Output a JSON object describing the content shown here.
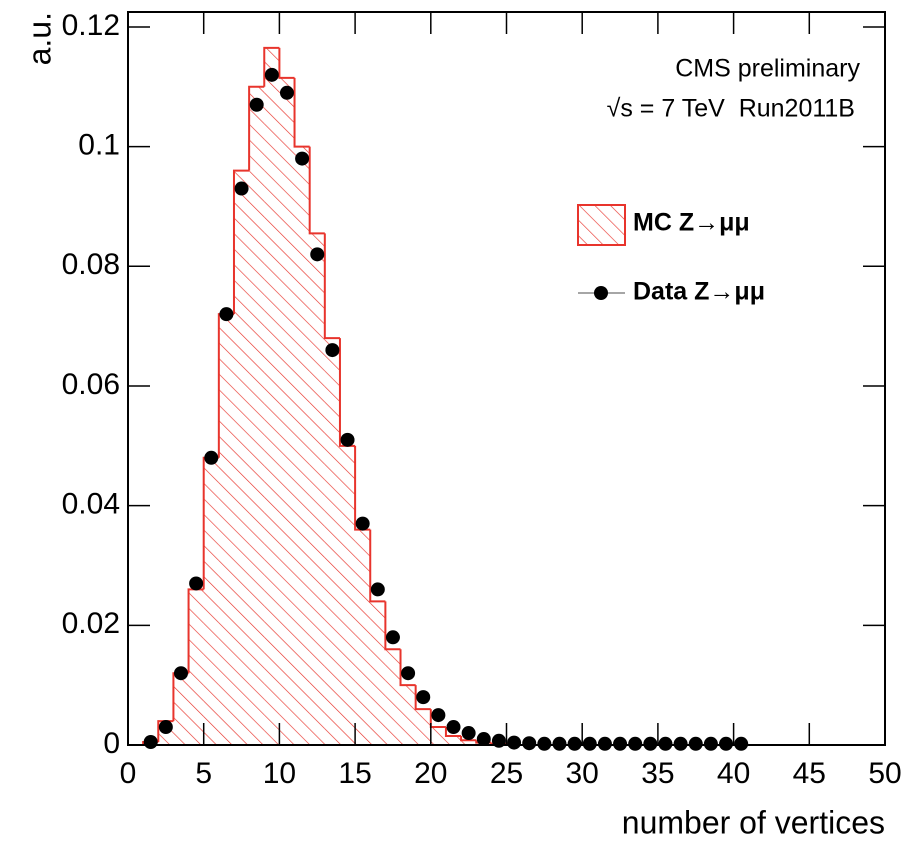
{
  "chart_data": {
    "type": "histogram",
    "annotations": [
      "CMS preliminary",
      "√s = 7 TeV  Run2011B"
    ],
    "xlabel": "number of vertices",
    "ylabel": "a.u.",
    "xlim": [
      0,
      50
    ],
    "xticks": [
      0,
      5,
      10,
      15,
      20,
      25,
      30,
      35,
      40,
      45,
      50
    ],
    "ylim": [
      0,
      0.1225
    ],
    "yticks": [
      0,
      0.02,
      0.04,
      0.06,
      0.08,
      0.1,
      0.12
    ],
    "legend": "upper right",
    "series": [
      {
        "name": "MC Z→μμ",
        "type": "histogram",
        "color": "#e8342c",
        "bins": [
          1,
          2,
          3,
          4,
          5,
          6,
          7,
          8,
          9,
          10,
          11,
          12,
          13,
          14,
          15,
          16,
          17,
          18,
          19,
          20,
          21,
          22,
          23,
          24,
          25
        ],
        "values": [
          0.0005,
          0.004,
          0.012,
          0.026,
          0.048,
          0.072,
          0.096,
          0.11,
          0.1165,
          0.1115,
          0.1,
          0.0855,
          0.068,
          0.05,
          0.036,
          0.024,
          0.016,
          0.01,
          0.006,
          0.003,
          0.0015,
          0.0008,
          0.0004,
          0.0002
        ]
      },
      {
        "name": "Data Z→μμ",
        "type": "scatter",
        "color": "#000000",
        "x": [
          1.5,
          2.5,
          3.5,
          4.5,
          5.5,
          6.5,
          7.5,
          8.5,
          9.5,
          10.5,
          11.5,
          12.5,
          13.5,
          14.5,
          15.5,
          16.5,
          17.5,
          18.5,
          19.5,
          20.5,
          21.5,
          22.5,
          23.5,
          24.5,
          25.5,
          26.5,
          27.5,
          28.5,
          29.5,
          30.5,
          31.5,
          32.5,
          33.5,
          34.5,
          35.5,
          36.5,
          37.5,
          38.5,
          39.5,
          40.5
        ],
        "values": [
          0.0005,
          0.003,
          0.012,
          0.027,
          0.048,
          0.072,
          0.093,
          0.107,
          0.112,
          0.109,
          0.098,
          0.082,
          0.066,
          0.051,
          0.037,
          0.026,
          0.018,
          0.012,
          0.008,
          0.005,
          0.003,
          0.002,
          0.001,
          0.0007,
          0.0004,
          0.0003,
          0.0002,
          0.0002,
          0.0002,
          0.0002,
          0.0002,
          0.0002,
          0.0002,
          0.0002,
          0.0002,
          0.0002,
          0.0002,
          0.0002,
          0.0002,
          0.0002
        ]
      }
    ]
  }
}
